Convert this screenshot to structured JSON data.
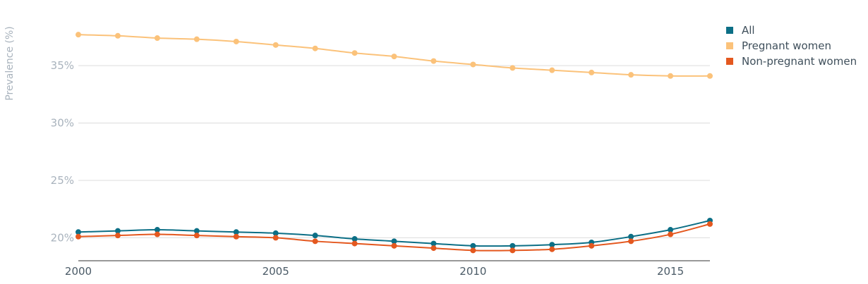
{
  "chart_data": {
    "type": "line",
    "ylabel": "Prevalence (%)",
    "y_ticks": [
      {
        "value": 20,
        "label": "20%"
      },
      {
        "value": 25,
        "label": "25%"
      },
      {
        "value": 30,
        "label": "30%"
      },
      {
        "value": 35,
        "label": "35%"
      }
    ],
    "x_ticks": [
      {
        "value": 2000,
        "label": "2000"
      },
      {
        "value": 2005,
        "label": "2005"
      },
      {
        "value": 2010,
        "label": "2010"
      },
      {
        "value": 2015,
        "label": "2015"
      }
    ],
    "xlim": [
      2000,
      2016
    ],
    "ylim": [
      18,
      39
    ],
    "legend_position": "top-right",
    "x": [
      2000,
      2001,
      2002,
      2003,
      2004,
      2005,
      2006,
      2007,
      2008,
      2009,
      2010,
      2011,
      2012,
      2013,
      2014,
      2015,
      2016
    ],
    "series": [
      {
        "name": "All",
        "color": "#0c6f86",
        "values": [
          20.5,
          20.6,
          20.7,
          20.6,
          20.5,
          20.4,
          20.2,
          19.9,
          19.7,
          19.5,
          19.3,
          19.3,
          19.4,
          19.6,
          20.1,
          20.7,
          21.5
        ]
      },
      {
        "name": "Pregnant women",
        "color": "#fbc27a",
        "values": [
          37.7,
          37.6,
          37.4,
          37.3,
          37.1,
          36.8,
          36.5,
          36.1,
          35.8,
          35.4,
          35.1,
          34.8,
          34.6,
          34.4,
          34.2,
          34.1,
          34.1
        ]
      },
      {
        "name": "Non-pregnant women",
        "color": "#e4581f",
        "values": [
          20.1,
          20.2,
          20.3,
          20.2,
          20.1,
          20.0,
          19.7,
          19.5,
          19.3,
          19.1,
          18.9,
          18.9,
          19.0,
          19.3,
          19.7,
          20.3,
          21.2
        ]
      }
    ]
  }
}
